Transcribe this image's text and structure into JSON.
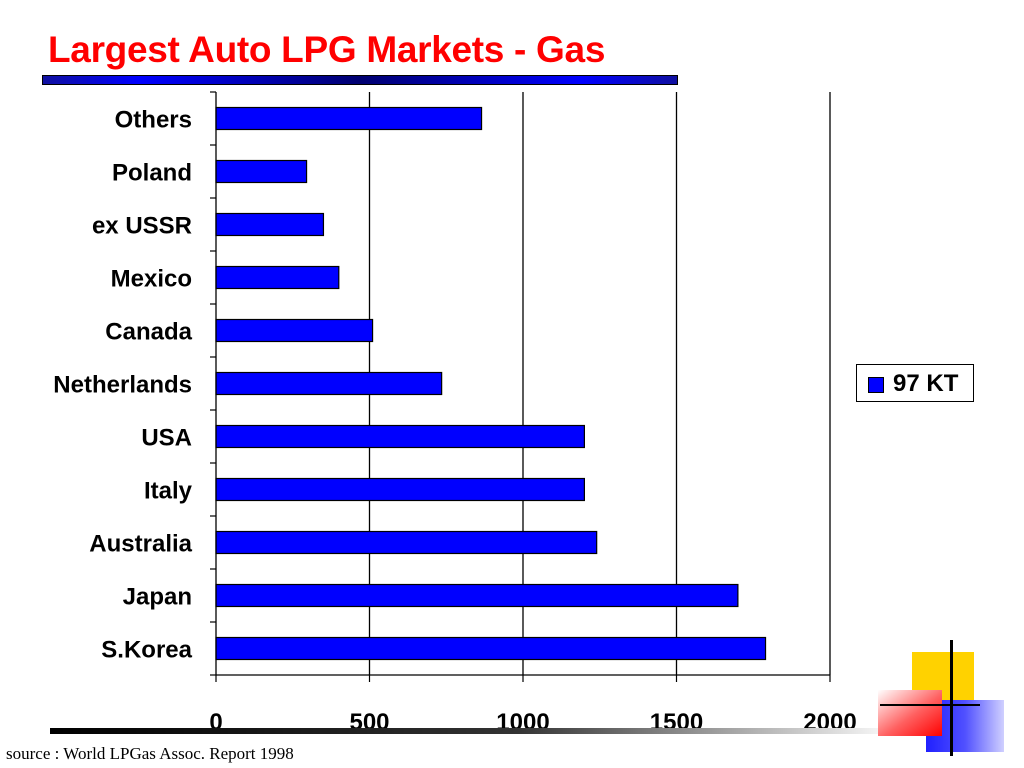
{
  "title": "Largest Auto LPG Markets - Gas",
  "source": "source : World LPGas Assoc. Report 1998",
  "legend": {
    "label": "97 KT",
    "color": "#0000ff"
  },
  "chart_data": {
    "type": "bar",
    "orientation": "horizontal",
    "title": "Largest Auto LPG Markets - Gas",
    "categories": [
      "S.Korea",
      "Japan",
      "Australia",
      "Italy",
      "USA",
      "Netherlands",
      "Canada",
      "Mexico",
      "ex USSR",
      "Poland",
      "Others"
    ],
    "series": [
      {
        "name": "97 KT",
        "color": "#0000ff",
        "values": [
          1790,
          1700,
          1240,
          1200,
          1200,
          735,
          510,
          400,
          350,
          295,
          865
        ]
      }
    ],
    "xlim": [
      0,
      2000
    ],
    "xticks": [
      "0",
      "500",
      "1000",
      "1500",
      "2000"
    ],
    "grid": "vertical major lines",
    "legend_position": "right",
    "xlabel": "",
    "ylabel": ""
  }
}
